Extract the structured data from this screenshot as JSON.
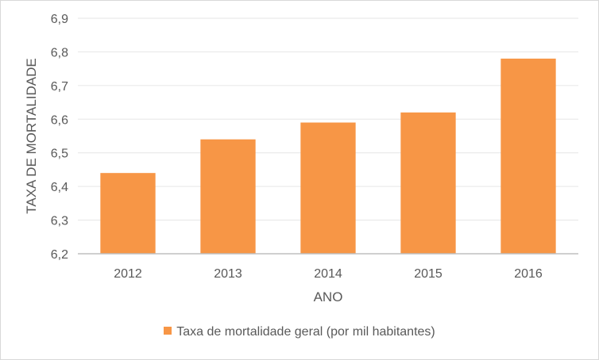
{
  "chart_data": {
    "type": "bar",
    "categories": [
      "2012",
      "2013",
      "2014",
      "2015",
      "2016"
    ],
    "series": [
      {
        "name": "Taxa de mortalidade geral (por mil habitantes)",
        "values": [
          6.44,
          6.54,
          6.59,
          6.62,
          6.78
        ]
      }
    ],
    "xlabel": "ANO",
    "ylabel": "TAXA DE MORTALIDADE",
    "ylim": [
      6.2,
      6.9
    ],
    "yticks": [
      "6,2",
      "6,3",
      "6,4",
      "6,5",
      "6,6",
      "6,7",
      "6,8",
      "6,9"
    ],
    "grid": true,
    "legend": "bottom",
    "bar_color": "#f79646"
  }
}
